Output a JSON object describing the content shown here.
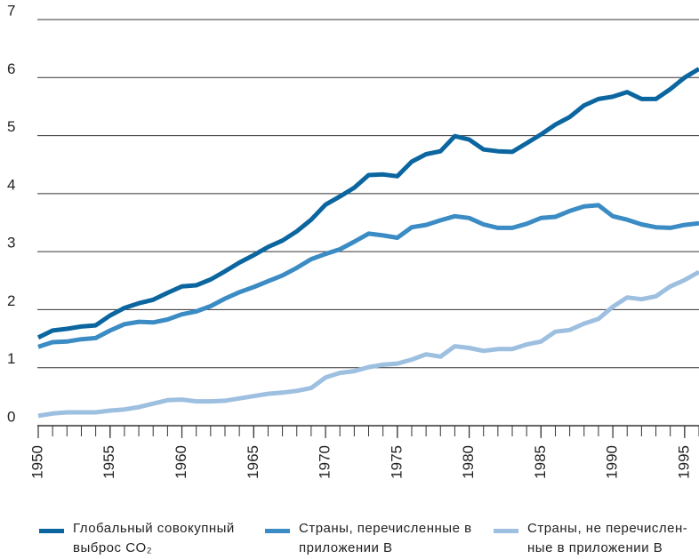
{
  "chart_data": {
    "type": "line",
    "x": [
      1950,
      1951,
      1952,
      1953,
      1954,
      1955,
      1956,
      1957,
      1958,
      1959,
      1960,
      1961,
      1962,
      1963,
      1964,
      1965,
      1966,
      1967,
      1968,
      1969,
      1970,
      1971,
      1972,
      1973,
      1974,
      1975,
      1976,
      1977,
      1978,
      1979,
      1980,
      1981,
      1982,
      1983,
      1984,
      1985,
      1986,
      1987,
      1988,
      1989,
      1990,
      1991,
      1992,
      1993,
      1994,
      1995,
      1996
    ],
    "xlim": [
      1950,
      1996
    ],
    "xticks": [
      1950,
      1955,
      1960,
      1965,
      1970,
      1975,
      1980,
      1985,
      1990,
      1995
    ],
    "ylim": [
      0,
      7
    ],
    "yticks": [
      0,
      1,
      2,
      3,
      4,
      5,
      6,
      7
    ],
    "grid": true,
    "series": [
      {
        "name": "Глобальный совокупный выброс CO₂",
        "color": "#0b66a0",
        "values": [
          1.52,
          1.64,
          1.67,
          1.71,
          1.73,
          1.9,
          2.03,
          2.11,
          2.17,
          2.29,
          2.4,
          2.42,
          2.52,
          2.66,
          2.81,
          2.94,
          3.08,
          3.19,
          3.35,
          3.55,
          3.81,
          3.95,
          4.1,
          4.32,
          4.33,
          4.3,
          4.55,
          4.68,
          4.73,
          4.99,
          4.93,
          4.76,
          4.73,
          4.72,
          4.87,
          5.02,
          5.19,
          5.32,
          5.52,
          5.63,
          5.67,
          5.75,
          5.63,
          5.63,
          5.8,
          6.0,
          6.15
        ]
      },
      {
        "name": "Страны, перечисленные в приложении В",
        "color": "#3b8bc4",
        "values": [
          1.36,
          1.44,
          1.45,
          1.49,
          1.51,
          1.64,
          1.75,
          1.79,
          1.78,
          1.83,
          1.92,
          1.97,
          2.06,
          2.19,
          2.3,
          2.39,
          2.49,
          2.59,
          2.72,
          2.87,
          2.96,
          3.04,
          3.17,
          3.31,
          3.28,
          3.24,
          3.42,
          3.46,
          3.54,
          3.61,
          3.58,
          3.47,
          3.41,
          3.41,
          3.48,
          3.58,
          3.6,
          3.7,
          3.78,
          3.8,
          3.61,
          3.55,
          3.47,
          3.42,
          3.41,
          3.46,
          3.49
        ]
      },
      {
        "name": "Страны, не перечислен-ные в приложении В",
        "color": "#9dbfe0",
        "values": [
          0.17,
          0.21,
          0.23,
          0.23,
          0.23,
          0.26,
          0.28,
          0.32,
          0.38,
          0.44,
          0.45,
          0.42,
          0.42,
          0.43,
          0.47,
          0.51,
          0.55,
          0.57,
          0.6,
          0.65,
          0.83,
          0.91,
          0.94,
          1.01,
          1.05,
          1.07,
          1.14,
          1.23,
          1.19,
          1.37,
          1.34,
          1.29,
          1.32,
          1.32,
          1.4,
          1.45,
          1.62,
          1.65,
          1.76,
          1.84,
          2.05,
          2.21,
          2.18,
          2.23,
          2.4,
          2.51,
          2.65
        ]
      }
    ]
  }
}
